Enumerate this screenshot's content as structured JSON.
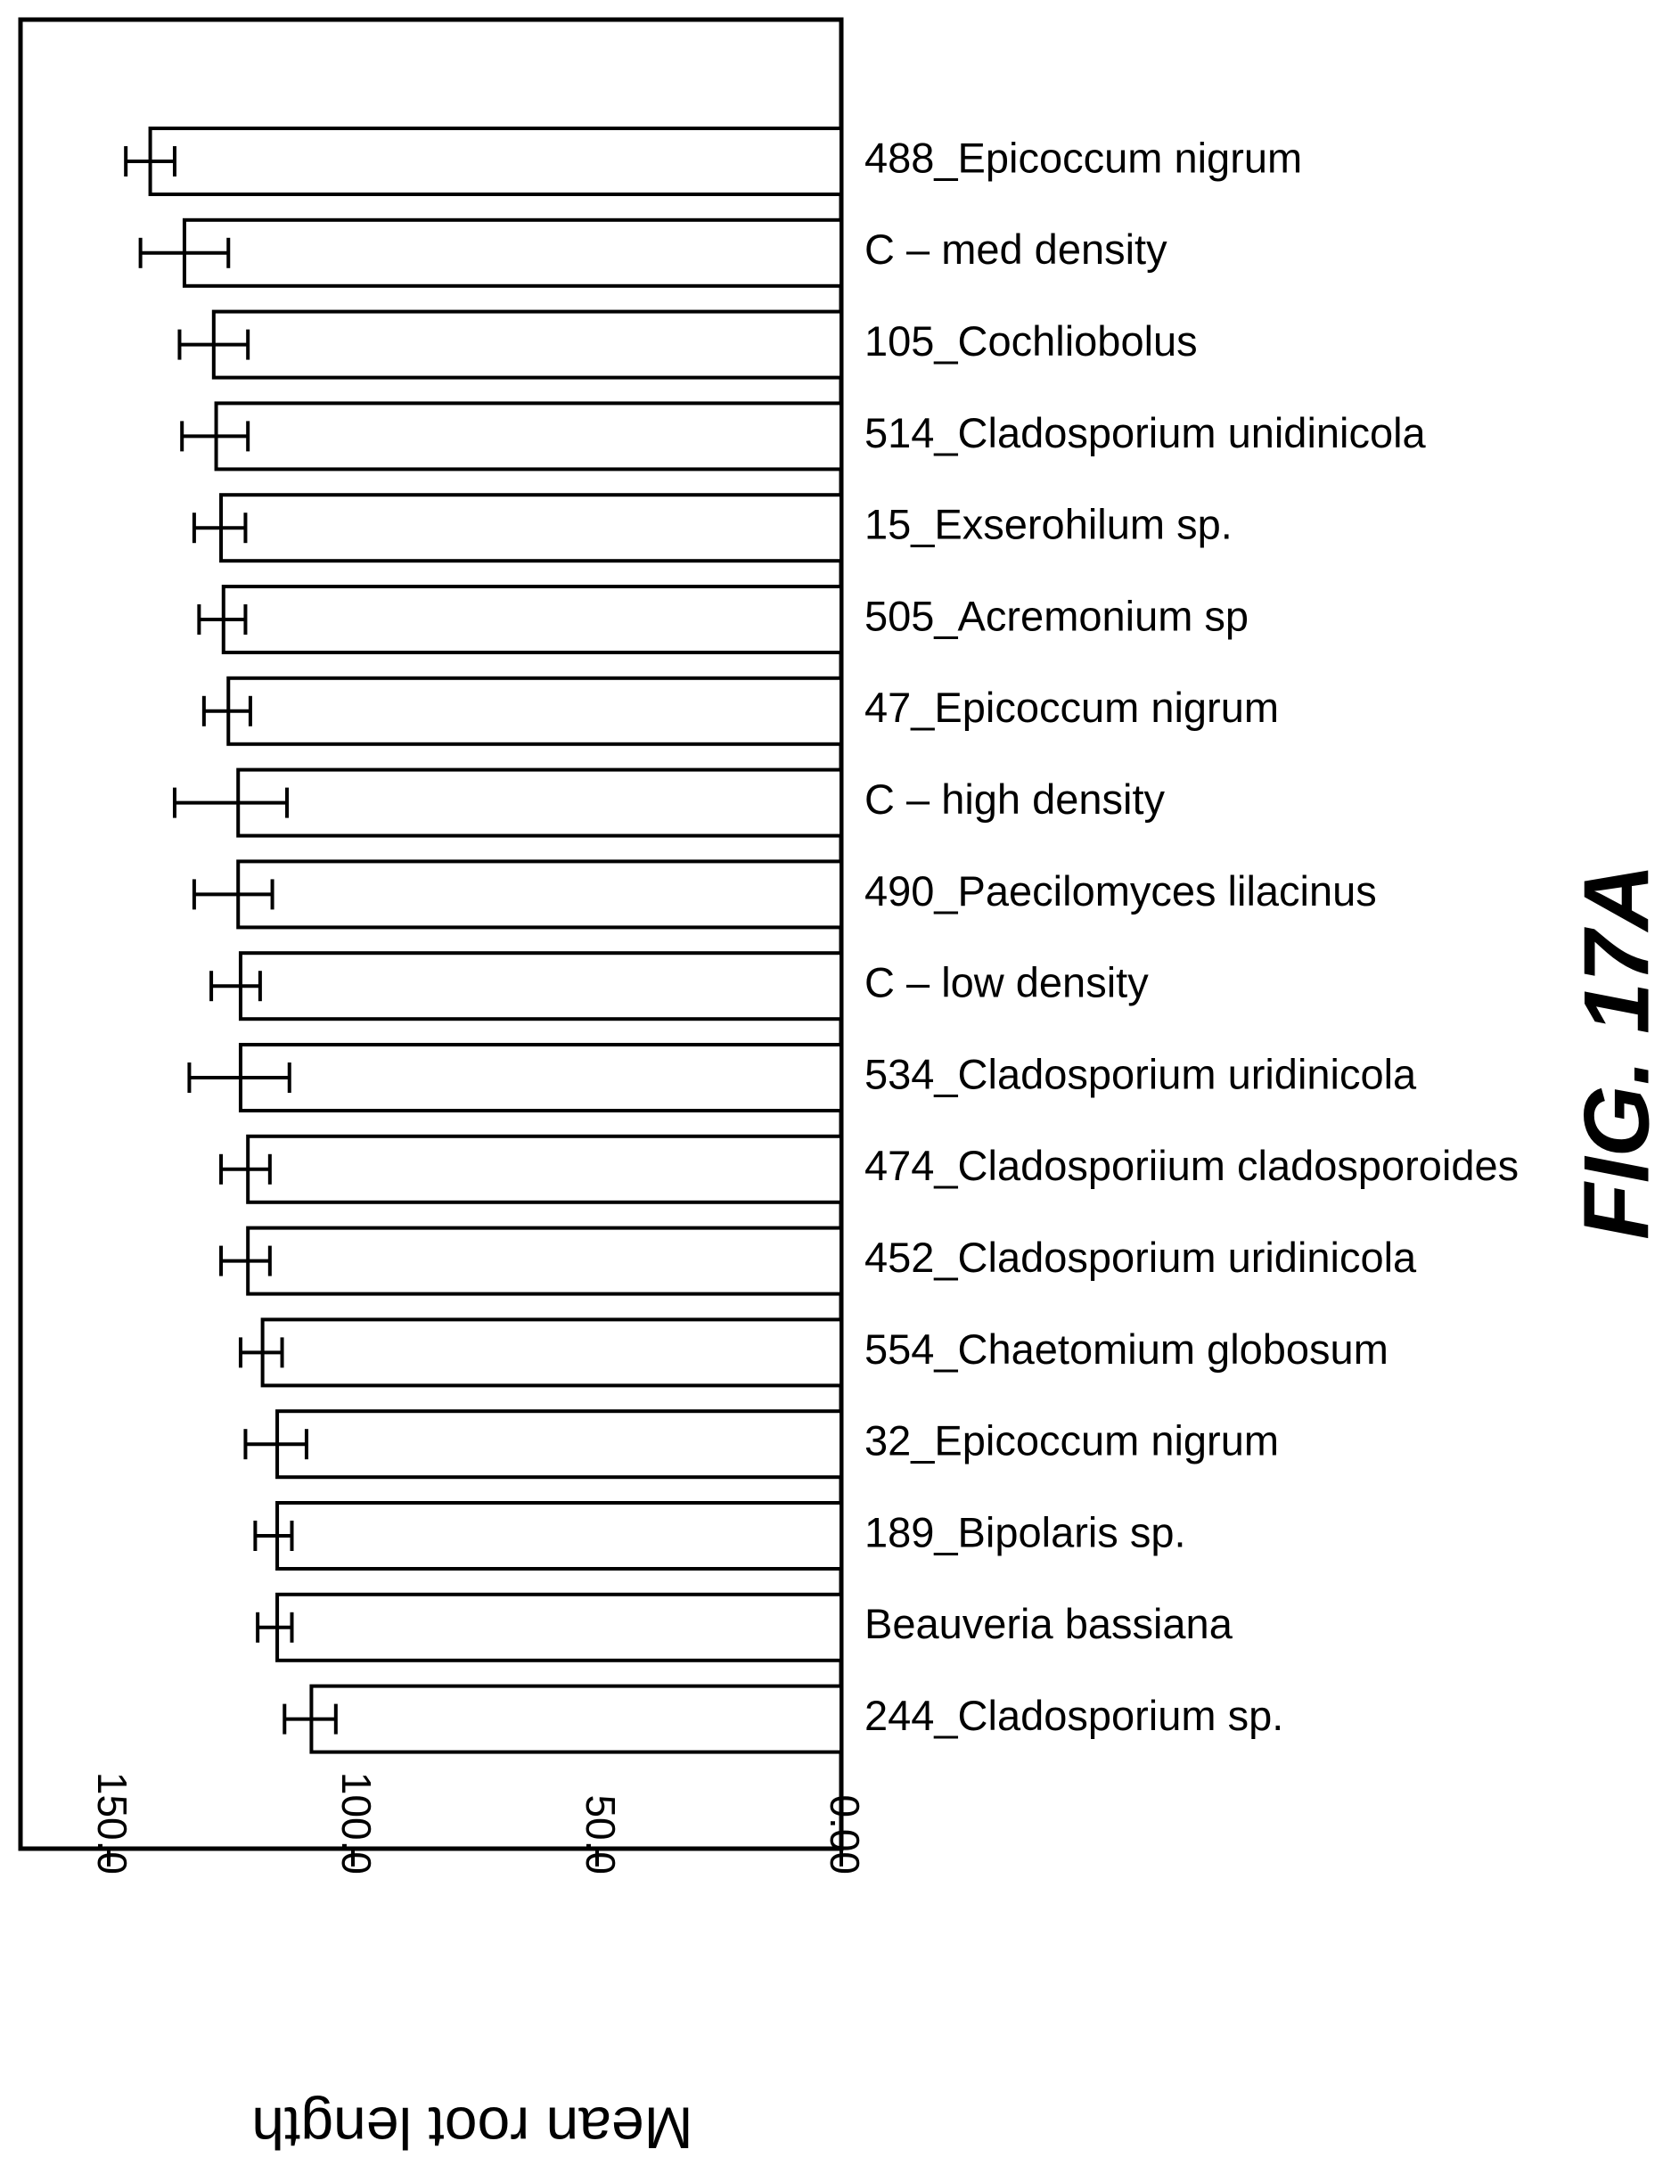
{
  "figure_label": "FIG. 17A",
  "chart_data": {
    "type": "bar",
    "orientation": "horizontal",
    "value_axis_direction": "reversed",
    "title": "",
    "xlabel": "Mean root length",
    "xlim": [
      0,
      165
    ],
    "ticks": [
      {
        "value": 0,
        "label": "0.00"
      },
      {
        "value": 50,
        "label": "50.0"
      },
      {
        "value": 100,
        "label": "100.0"
      },
      {
        "value": 150,
        "label": "150.0"
      }
    ],
    "categories": [
      "488_Epicoccum nigrum",
      "C – med density",
      "105_Cochliobolus",
      "514_Cladosporium unidinicola",
      "15_Exserohilum sp.",
      "505_Acremonium sp",
      "47_Epicoccum nigrum",
      "C – high density",
      "490_Paecilomyces lilacinus",
      "C – low density",
      "534_Cladosporium uridinicola",
      "474_Cladosporiium cladosporoides",
      "452_Cladosporium uridinicola",
      "554_Chaetomium globosum",
      "32_Epicoccum nigrum",
      "189_Bipolaris sp.",
      "Beauveria bassiana",
      "244_Cladosporium sp."
    ],
    "values": [
      141.5,
      134.5,
      128.5,
      128.0,
      127.0,
      126.5,
      125.5,
      123.5,
      123.5,
      123.0,
      123.0,
      121.5,
      121.5,
      118.5,
      115.5,
      115.5,
      115.5,
      108.5
    ],
    "error_low": [
      136.5,
      125.5,
      121.5,
      121.5,
      122.0,
      122.0,
      121.0,
      113.5,
      116.5,
      119.0,
      113.0,
      117.0,
      117.0,
      114.5,
      109.5,
      112.5,
      112.5,
      103.5
    ],
    "error_high": [
      146.5,
      143.5,
      135.5,
      135.0,
      132.5,
      131.5,
      130.5,
      136.5,
      132.5,
      129.0,
      133.5,
      127.0,
      127.0,
      123.0,
      122.0,
      120.0,
      119.5,
      114.0
    ],
    "grid": false,
    "legend": "none",
    "bar_fill": "#ffffff",
    "bar_stroke": "#000000"
  }
}
